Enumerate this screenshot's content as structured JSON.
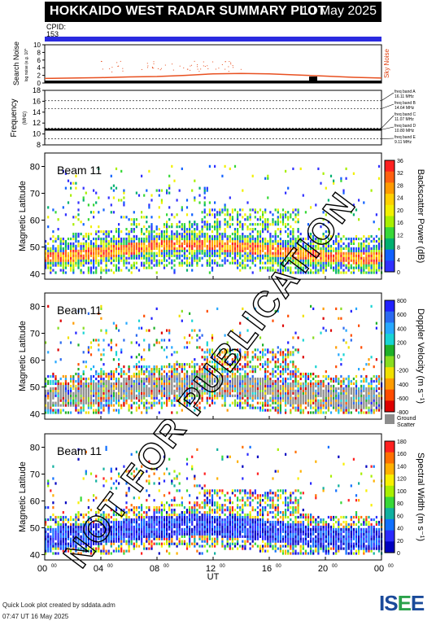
{
  "header": {
    "title": "HOKKAIDO WEST RADAR SUMMARY PLOT",
    "date": "10 May 2025"
  },
  "cpid": {
    "label": "CPID:",
    "value": "153"
  },
  "noise_panel": {
    "ylabel": "Search Noise",
    "ylabel_small": "log noise (e.g. 10^",
    "right_label": "Sky Noise",
    "yticks": [
      "10",
      "8",
      "6",
      "4",
      "2",
      "0"
    ]
  },
  "freq_panel": {
    "ylabel": "Frequency",
    "unit": "(MHz)",
    "yticks": [
      "18",
      "16",
      "14",
      "12",
      "10",
      "8"
    ],
    "bands": [
      {
        "name": "freq band A",
        "value": "16.11 MHz",
        "freq": 16.11
      },
      {
        "name": "freq band B",
        "value": "14.64 MHz",
        "freq": 14.64
      },
      {
        "name": "freq band C",
        "value": "11.07 MHz",
        "freq": 11.07
      },
      {
        "name": "freq band D",
        "value": "10.80 MHz",
        "freq": 10.8
      },
      {
        "name": "freq band E",
        "value": "9.11 MHz",
        "freq": 9.11
      }
    ]
  },
  "panels": [
    {
      "beam": "Beam 11",
      "ylabel": "Magnetic Latitude",
      "cbar_label": "Backscatter Power (dB)",
      "cbar_ticks": [
        "36",
        "32",
        "28",
        "24",
        "20",
        "16",
        "12",
        "8",
        "4",
        "0"
      ],
      "ground_scatter": false
    },
    {
      "beam": "Beam 11",
      "ylabel": "Magnetic Latitude",
      "cbar_label": "Doppler Velocity (m s⁻¹)",
      "cbar_ticks": [
        "800",
        "600",
        "400",
        "200",
        "0",
        "-200",
        "-400",
        "-600",
        "-800"
      ],
      "ground_scatter": true,
      "ground_label_1": "Ground",
      "ground_label_2": "Scatter"
    },
    {
      "beam": "Beam 11",
      "ylabel": "Magnetic Latitude",
      "cbar_label": "Spectral Width (m s⁻¹)",
      "cbar_ticks": [
        "180",
        "160",
        "140",
        "120",
        "100",
        "80",
        "60",
        "40",
        "20",
        "0"
      ],
      "ground_scatter": false
    }
  ],
  "lat_ticks": [
    "80",
    "70",
    "60",
    "50",
    "40"
  ],
  "x_axis": {
    "label": "UT",
    "ticks": [
      "00",
      "04",
      "08",
      "12",
      "16",
      "20",
      "00"
    ],
    "tick_sup": "00"
  },
  "watermark": "NOT FOR PUBLICATION",
  "footer": {
    "line1": "Quick Look plot created by sddata.adm",
    "line2": "07:47 UT 16 May 2025"
  },
  "logo": {
    "text_a": "IS",
    "text_b": "E",
    "text_c": "E"
  },
  "chart_data": [
    {
      "type": "line",
      "title": "",
      "ylabel": "Search Noise",
      "xlabel": "UT",
      "xlim": [
        0,
        24
      ],
      "ylim": [
        0,
        10
      ],
      "series": [
        {
          "name": "Sky Noise",
          "x": [
            0,
            2,
            4,
            6,
            8,
            10,
            12,
            14,
            16,
            18,
            20,
            22,
            24
          ],
          "values": [
            1.2,
            1.3,
            1.4,
            1.6,
            1.7,
            2.0,
            2.4,
            2.5,
            2.4,
            2.1,
            1.8,
            1.5,
            1.3
          ]
        }
      ]
    },
    {
      "type": "scatter",
      "ylabel": "Frequency (MHz)",
      "xlim": [
        0,
        24
      ],
      "ylim": [
        8,
        18
      ],
      "series": [
        {
          "name": "Frequency",
          "x": [
            0,
            24
          ],
          "values": [
            10.8,
            10.8
          ]
        }
      ]
    },
    {
      "type": "heatmap",
      "title": "Beam 11",
      "xlabel": "UT",
      "ylabel": "Magnetic Latitude",
      "xlim": [
        0,
        24
      ],
      "ylim": [
        38,
        85
      ],
      "colorbar": "Backscatter Power (dB)",
      "crange": [
        0,
        36
      ]
    },
    {
      "type": "heatmap",
      "title": "Beam 11",
      "xlabel": "UT",
      "ylabel": "Magnetic Latitude",
      "xlim": [
        0,
        24
      ],
      "ylim": [
        38,
        85
      ],
      "colorbar": "Doppler Velocity (m s⁻¹)",
      "crange": [
        -800,
        800
      ]
    },
    {
      "type": "heatmap",
      "title": "Beam 11",
      "xlabel": "UT",
      "ylabel": "Magnetic Latitude",
      "xlim": [
        0,
        24
      ],
      "ylim": [
        38,
        85
      ],
      "colorbar": "Spectral Width (m s⁻¹)",
      "crange": [
        0,
        180
      ]
    }
  ]
}
